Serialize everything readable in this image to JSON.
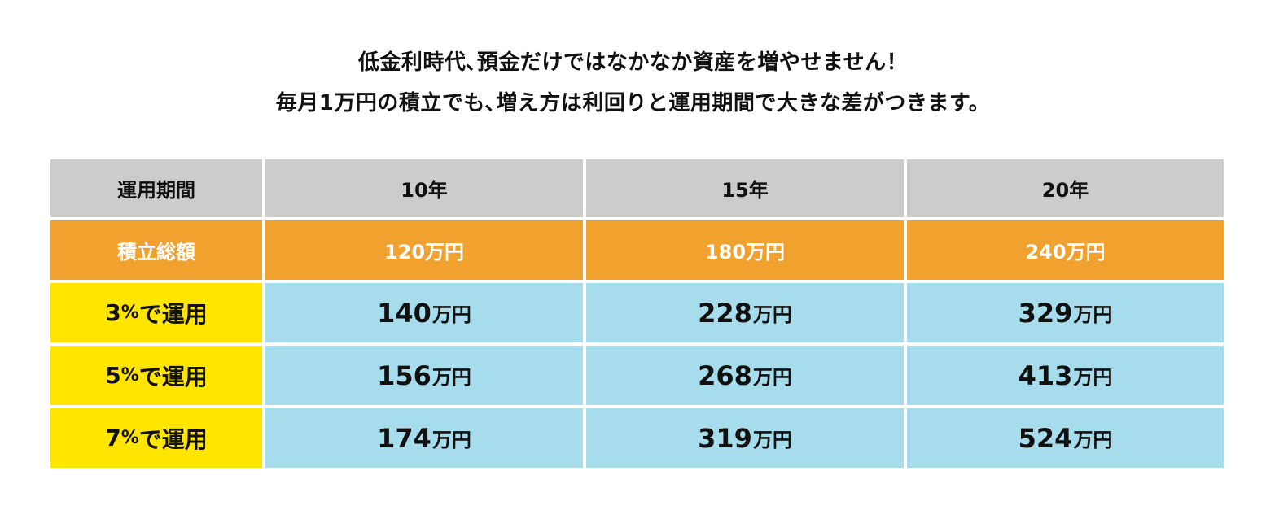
{
  "intro": {
    "line1": "低金利時代､預金だけではなかなか資産を増やせません！",
    "line2": "毎月1万円の積立でも､増え方は利回りと運用期間で大きな差がつきます。"
  },
  "chart_data": {
    "type": "table",
    "header": {
      "label": "運用期間",
      "periods": [
        "10年",
        "15年",
        "20年"
      ]
    },
    "total": {
      "label": "積立総額",
      "values": [
        "120万円",
        "180万円",
        "240万円"
      ]
    },
    "unit": "万円",
    "rows": [
      {
        "rate": "3",
        "pct_suffix": "%",
        "label_suffix": "で運用",
        "values": [
          "140",
          "228",
          "329"
        ]
      },
      {
        "rate": "5",
        "pct_suffix": "%",
        "label_suffix": "で運用",
        "values": [
          "156",
          "268",
          "413"
        ]
      },
      {
        "rate": "7",
        "pct_suffix": "%",
        "label_suffix": "で運用",
        "values": [
          "174",
          "319",
          "524"
        ]
      }
    ]
  },
  "colors": {
    "header_bg": "#cccccc",
    "total_bg": "#f0a12e",
    "rate_bg": "#ffe500",
    "value_bg": "#a6dcec"
  }
}
